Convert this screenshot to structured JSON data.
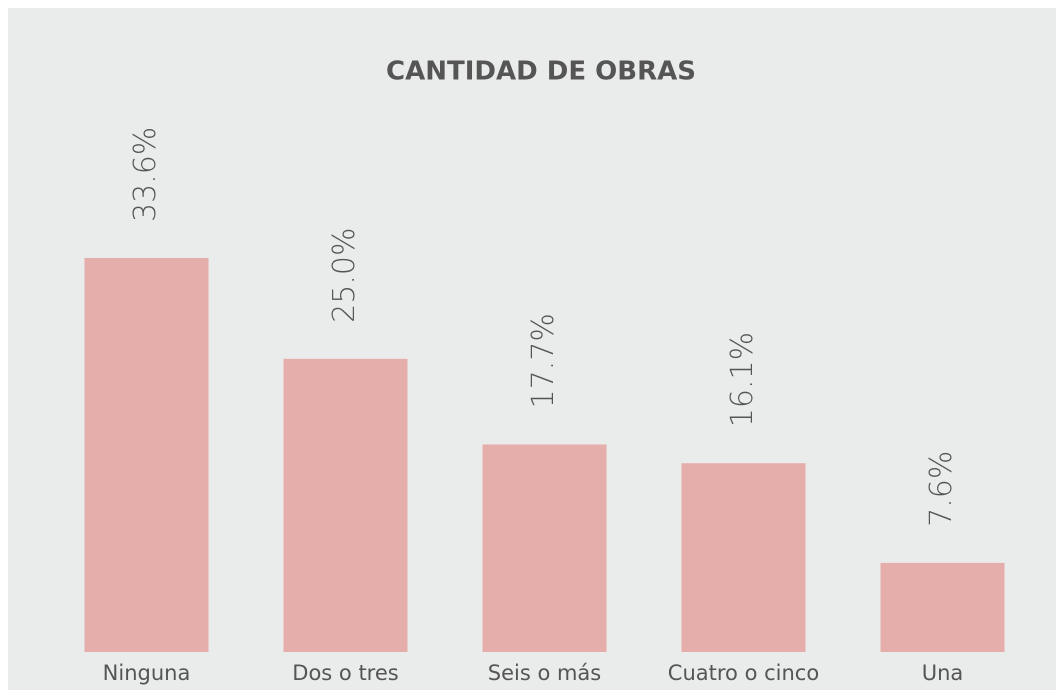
{
  "chart_data": {
    "type": "bar",
    "title": "CANTIDAD DE OBRAS",
    "categories": [
      "Ninguna",
      "Dos o tres",
      "Seis o más",
      "Cuatro o cinco",
      "Una"
    ],
    "values": [
      33.6,
      25.0,
      17.7,
      16.1,
      7.6
    ],
    "value_labels": [
      "33.6%",
      "25.0%",
      "17.7%",
      "16.1%",
      "7.6%"
    ],
    "color": "#e5aeab"
  }
}
